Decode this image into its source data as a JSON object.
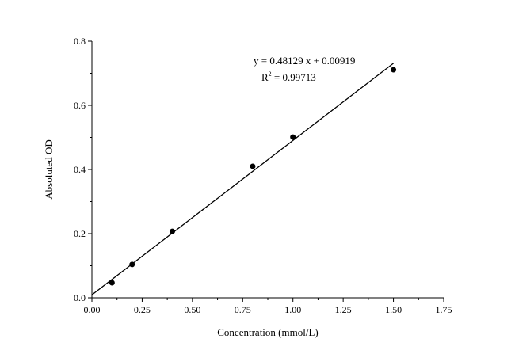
{
  "chart_data": {
    "type": "scatter",
    "title": "",
    "xlabel": "Concentration (mmol/L)",
    "ylabel": "Absoluted OD",
    "xlim": [
      0,
      1.75
    ],
    "ylim": [
      0,
      0.8
    ],
    "xticks": [
      "0.00",
      "0.25",
      "0.50",
      "0.75",
      "1.00",
      "1.25",
      "1.50",
      "1.75"
    ],
    "yticks": [
      "0.0",
      "0.2",
      "0.4",
      "0.6",
      "0.8"
    ],
    "grid": false,
    "points": [
      {
        "x": 0.1,
        "y": 0.047
      },
      {
        "x": 0.2,
        "y": 0.104
      },
      {
        "x": 0.4,
        "y": 0.207
      },
      {
        "x": 0.8,
        "y": 0.41
      },
      {
        "x": 1.0,
        "y": 0.501
      },
      {
        "x": 1.5,
        "y": 0.711
      }
    ],
    "fit": {
      "slope": 0.48129,
      "intercept": 0.00919,
      "x_range": [
        0,
        1.5
      ]
    },
    "annotation": {
      "equation": "y = 0.48129 x + 0.00919",
      "r2_label": "R",
      "r2_sup": "2",
      "r2_value": " = 0.99713"
    },
    "colors": {
      "points": "#000000",
      "line": "#000000"
    }
  }
}
